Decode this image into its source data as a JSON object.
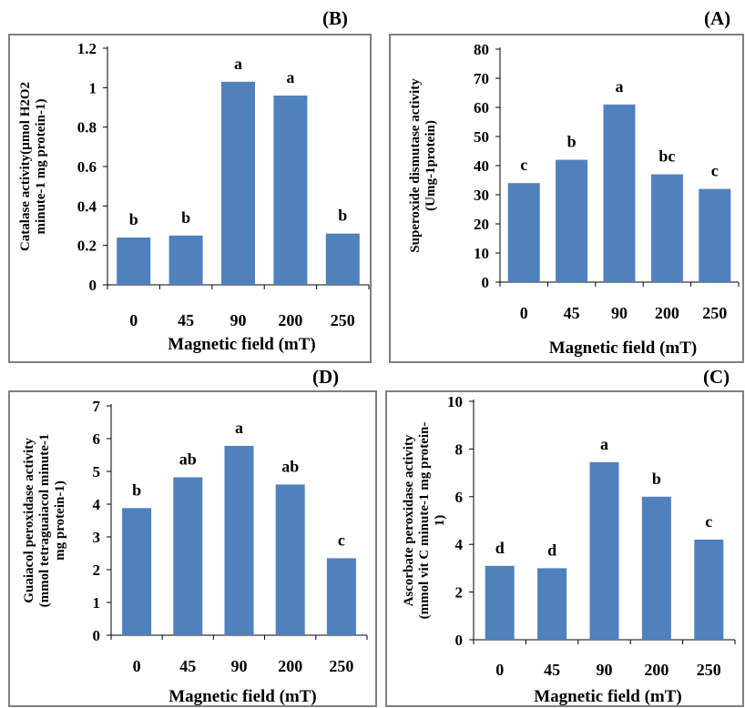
{
  "colors": {
    "bar": "#4f81bd",
    "axis": "#000000",
    "frame": "#7f7f7f",
    "text": "#000000"
  },
  "chart_data": [
    {
      "id": "B",
      "panel_label": "(B)",
      "type": "bar",
      "title": "",
      "xlabel": "Magnetic field (mT)",
      "ylabel_lines": [
        "Catalase activity(µmol H2O2",
        "minute-1 mg protein-1)"
      ],
      "categories": [
        "0",
        "45",
        "90",
        "200",
        "250"
      ],
      "values": [
        0.24,
        0.25,
        1.03,
        0.96,
        0.26
      ],
      "bar_labels": [
        "b",
        "b",
        "a",
        "a",
        "b"
      ],
      "ylim": [
        0,
        1.2
      ],
      "yticks": [
        "0",
        "0.2",
        "0.4",
        "0.6",
        "0.8",
        "1",
        "1.2"
      ],
      "grid": false
    },
    {
      "id": "A",
      "panel_label": "(A)",
      "type": "bar",
      "title": "",
      "xlabel": "Magnetic field (mT)",
      "ylabel_lines": [
        "Superoxide dismutase activity",
        "(Umg-1protein)"
      ],
      "categories": [
        "0",
        "45",
        "90",
        "200",
        "250"
      ],
      "values": [
        34,
        42,
        61,
        37,
        32
      ],
      "bar_labels": [
        "c",
        "b",
        "a",
        "bc",
        "c"
      ],
      "ylim": [
        0,
        80
      ],
      "yticks": [
        "0",
        "10",
        "20",
        "30",
        "40",
        "50",
        "60",
        "70",
        "80"
      ],
      "grid": false
    },
    {
      "id": "D",
      "panel_label": "(D)",
      "type": "bar",
      "title": "",
      "xlabel": "Magnetic field (mT)",
      "ylabel_lines": [
        "Guaiacol peroxidase activity",
        "(mmol tetraguaiacol minute-1",
        "mg protein-1)"
      ],
      "categories": [
        "0",
        "45",
        "90",
        "200",
        "250"
      ],
      "values": [
        3.88,
        4.82,
        5.78,
        4.6,
        2.35
      ],
      "bar_labels": [
        "b",
        "ab",
        "a",
        "ab",
        "c"
      ],
      "ylim": [
        0,
        7
      ],
      "yticks": [
        "0",
        "1",
        "2",
        "3",
        "4",
        "5",
        "6",
        "7"
      ],
      "grid": false
    },
    {
      "id": "C",
      "panel_label": "(C)",
      "type": "bar",
      "title": "",
      "xlabel": "Magnetic field (mT)",
      "ylabel_lines": [
        "Ascorbate peroxidase activity",
        "(mmol vit C minute-1 mg protein-",
        "1)"
      ],
      "categories": [
        "0",
        "45",
        "90",
        "200",
        "250"
      ],
      "values": [
        3.1,
        3.0,
        7.45,
        6.0,
        4.2
      ],
      "bar_labels": [
        "d",
        "d",
        "a",
        "b",
        "c"
      ],
      "ylim": [
        0,
        10
      ],
      "yticks": [
        "0",
        "2",
        "4",
        "6",
        "8",
        "10"
      ],
      "grid": false
    }
  ]
}
